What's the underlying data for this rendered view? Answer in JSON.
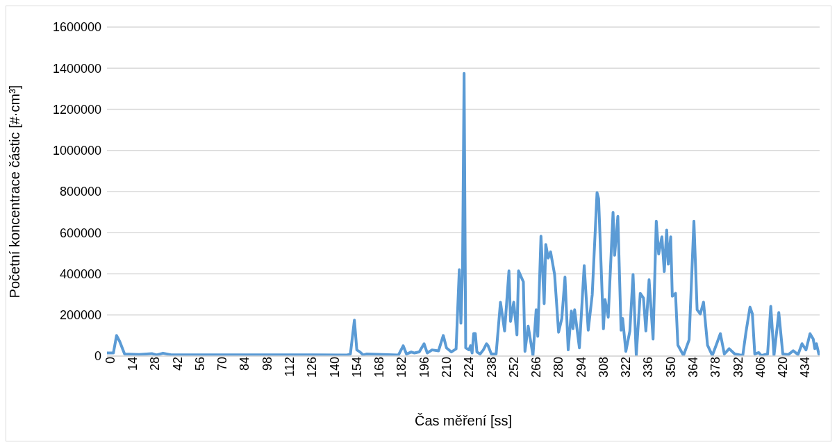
{
  "chart_data": {
    "type": "line",
    "xlabel": "Čas měření [ss]",
    "ylabel": "Početní koncentrace částic [#·cm³]",
    "xlim": [
      0,
      445
    ],
    "xticks": [
      0,
      14,
      28,
      42,
      56,
      70,
      84,
      98,
      112,
      126,
      140,
      154,
      168,
      182,
      196,
      210,
      224,
      238,
      252,
      266,
      280,
      294,
      308,
      322,
      336,
      350,
      364,
      378,
      392,
      406,
      420,
      434
    ],
    "ylim": [
      0,
      1600000
    ],
    "yticks": [
      0,
      200000,
      400000,
      600000,
      800000,
      1000000,
      1200000,
      1400000,
      1600000
    ],
    "grid": "y",
    "marker": "none",
    "line_style": "solid",
    "series": [
      {
        "color": "#5b9bd5",
        "x": [
          0,
          4,
          6,
          8,
          11,
          20,
          28,
          31,
          35,
          40,
          70,
          100,
          130,
          150,
          152,
          154.5,
          156,
          158,
          160,
          162,
          182,
          185,
          187,
          190,
          192,
          195,
          198,
          200,
          203,
          207,
          210,
          212,
          215,
          218,
          220,
          221,
          222,
          223,
          224,
          226,
          227,
          228,
          229,
          230,
          231,
          233,
          235,
          237,
          238,
          240,
          243,
          245.7,
          248.3,
          251,
          252,
          254,
          256,
          257,
          260,
          261,
          263,
          266,
          268,
          269,
          271,
          273,
          274,
          275.5,
          277,
          279.5,
          282,
          284,
          286,
          288,
          290,
          291,
          292,
          295,
          298,
          300.5,
          303,
          306,
          307,
          310,
          311,
          313,
          316,
          317,
          319,
          321,
          322,
          324,
          326.5,
          328.5,
          330.5,
          333,
          335,
          336.5,
          338.5,
          341,
          343,
          344.5,
          346.5,
          348,
          349.5,
          350.5,
          352,
          353,
          355,
          356.5,
          360,
          363.5,
          366.5,
          368.5,
          370.5,
          372.5,
          375,
          378,
          381,
          383,
          385.5,
          388.5,
          392,
          397,
          399,
          401.5,
          403,
          404.5,
          407,
          408.5,
          412.5,
          414.5,
          416.5,
          419.5,
          422,
          425.5,
          428.5,
          431.5,
          434,
          436.5,
          439,
          441,
          442,
          443,
          444.5
        ],
        "values": [
          15000,
          15000,
          100000,
          70000,
          10000,
          8000,
          12000,
          5000,
          14000,
          6000,
          6000,
          6000,
          6000,
          5000,
          10000,
          175000,
          30000,
          20000,
          5000,
          10000,
          5000,
          50000,
          10000,
          20000,
          15000,
          20000,
          60000,
          15000,
          30000,
          25000,
          100000,
          40000,
          20000,
          35000,
          420000,
          160000,
          400000,
          1375000,
          40000,
          30000,
          50000,
          15000,
          110000,
          110000,
          20000,
          10000,
          30000,
          60000,
          50000,
          10000,
          10000,
          262000,
          122000,
          414000,
          169000,
          262000,
          103000,
          414000,
          361000,
          23000,
          146000,
          3000,
          225000,
          96000,
          583000,
          255000,
          543000,
          477000,
          507000,
          397000,
          116000,
          182000,
          384000,
          30000,
          219000,
          133000,
          225000,
          40000,
          440000,
          126000,
          298000,
          795000,
          765000,
          133000,
          275000,
          189000,
          699000,
          490000,
          679000,
          126000,
          182000,
          23000,
          122000,
          397000,
          3000,
          305000,
          282000,
          122000,
          371000,
          83000,
          656000,
          497000,
          580000,
          411000,
          613000,
          447000,
          580000,
          291000,
          305000,
          53000,
          3000,
          79000,
          656000,
          225000,
          205000,
          262000,
          53000,
          3000,
          66000,
          109000,
          10000,
          36000,
          10000,
          3000,
          116000,
          238000,
          205000,
          10000,
          17000,
          3000,
          10000,
          242000,
          3000,
          212000,
          10000,
          7000,
          26000,
          7000,
          60000,
          30000,
          109000,
          83000,
          36000,
          60000,
          10000
        ]
      }
    ]
  }
}
